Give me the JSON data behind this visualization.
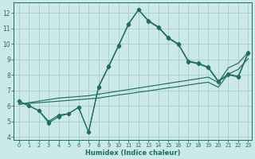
{
  "xlabel": "Humidex (Indice chaleur)",
  "background_color": "#cce9e9",
  "grid_color": "#aacccc",
  "line_color": "#1e6e61",
  "xlim_min": -0.5,
  "xlim_max": 23.4,
  "ylim_min": 3.8,
  "ylim_max": 12.65,
  "yticks": [
    4,
    5,
    6,
    7,
    8,
    9,
    10,
    11,
    12
  ],
  "xtick_labels": [
    "0",
    "1",
    "2",
    "3",
    "4",
    "5",
    "6",
    "7",
    "8",
    "9",
    "10",
    "11",
    "12",
    "13",
    "14",
    "15",
    "16",
    "17",
    "18",
    "19",
    "20",
    "21",
    "22",
    "23"
  ],
  "curve1_y": [
    6.3,
    6.0,
    5.7,
    4.9,
    5.3,
    5.5,
    5.9,
    4.3,
    7.25,
    8.55,
    9.9,
    11.3,
    12.2,
    11.5,
    11.1,
    10.4,
    10.0,
    8.9,
    8.75,
    8.5,
    7.6,
    8.05,
    7.9,
    9.45
  ],
  "curve2_y": [
    6.3,
    6.0,
    5.7,
    5.0,
    5.4,
    5.5,
    5.9,
    4.3,
    7.2,
    8.5,
    9.85,
    11.25,
    12.2,
    11.45,
    11.05,
    10.35,
    9.95,
    8.85,
    8.7,
    8.45,
    7.55,
    8.0,
    7.85,
    9.4
  ],
  "line1_y": [
    6.1,
    6.2,
    6.3,
    6.4,
    6.5,
    6.55,
    6.6,
    6.65,
    6.75,
    6.85,
    6.95,
    7.05,
    7.15,
    7.25,
    7.35,
    7.45,
    7.55,
    7.65,
    7.75,
    7.85,
    7.5,
    8.45,
    8.75,
    9.45
  ],
  "line2_y": [
    6.1,
    6.15,
    6.2,
    6.25,
    6.3,
    6.35,
    6.4,
    6.45,
    6.5,
    6.6,
    6.7,
    6.78,
    6.88,
    6.96,
    7.06,
    7.16,
    7.24,
    7.34,
    7.44,
    7.52,
    7.2,
    8.05,
    8.35,
    9.05
  ]
}
